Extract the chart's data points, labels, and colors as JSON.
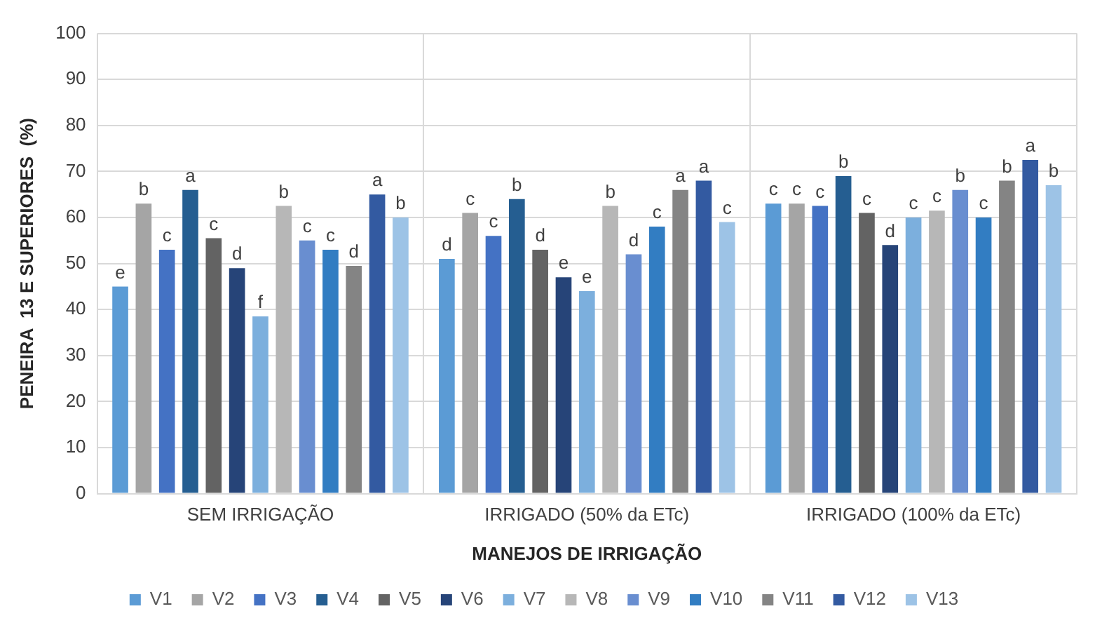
{
  "chart_data": {
    "type": "bar",
    "xlabel": "MANEJOS DE IRRIGAÇÃO",
    "ylabel": "PENEIRA  13 E SUPERIORES  (%)",
    "categories": [
      "SEM IRRIGAÇÃO",
      "IRRIGADO (50% da ETc)",
      "IRRIGADO (100% da ETc)"
    ],
    "series": [
      {
        "name": "V1",
        "color": "#5b9bd5",
        "values": [
          45,
          51,
          63
        ],
        "value_labels": [
          "e",
          "d",
          "c"
        ]
      },
      {
        "name": "V2",
        "color": "#a5a5a5",
        "values": [
          63,
          61,
          63
        ],
        "value_labels": [
          "b",
          "c",
          "c"
        ]
      },
      {
        "name": "V3",
        "color": "#4472c4",
        "values": [
          53,
          56,
          62.5
        ],
        "value_labels": [
          "c",
          "c",
          "c"
        ]
      },
      {
        "name": "V4",
        "color": "#255e91",
        "values": [
          66,
          64,
          69
        ],
        "value_labels": [
          "a",
          "b",
          "b"
        ]
      },
      {
        "name": "V5",
        "color": "#636363",
        "values": [
          55.5,
          53,
          61
        ],
        "value_labels": [
          "c",
          "d",
          "c"
        ]
      },
      {
        "name": "V6",
        "color": "#264478",
        "values": [
          49,
          47,
          54
        ],
        "value_labels": [
          "d",
          "e",
          "d"
        ]
      },
      {
        "name": "V7",
        "color": "#7cafdd",
        "values": [
          38.5,
          44,
          60
        ],
        "value_labels": [
          "f",
          "e",
          "c"
        ]
      },
      {
        "name": "V8",
        "color": "#b7b7b7",
        "values": [
          62.5,
          62.5,
          61.5
        ],
        "value_labels": [
          "b",
          "b",
          "c"
        ]
      },
      {
        "name": "V9",
        "color": "#698ed0",
        "values": [
          55,
          52,
          66
        ],
        "value_labels": [
          "c",
          "d",
          "b"
        ]
      },
      {
        "name": "V10",
        "color": "#327dc2",
        "values": [
          53,
          58,
          60
        ],
        "value_labels": [
          "c",
          "c",
          "c"
        ]
      },
      {
        "name": "V11",
        "color": "#848484",
        "values": [
          49.5,
          66,
          68
        ],
        "value_labels": [
          "d",
          "a",
          "b"
        ]
      },
      {
        "name": "V12",
        "color": "#335aa1",
        "values": [
          65,
          68,
          72.5
        ],
        "value_labels": [
          "a",
          "a",
          "a"
        ]
      },
      {
        "name": "V13",
        "color": "#9dc3e6",
        "values": [
          60,
          59,
          67
        ],
        "value_labels": [
          "b",
          "c",
          "b"
        ]
      }
    ],
    "ylim": [
      0,
      100
    ],
    "yticks": [
      0,
      10,
      20,
      30,
      40,
      50,
      60,
      70,
      80,
      90,
      100
    ],
    "grid": true,
    "legend": "bottom"
  }
}
